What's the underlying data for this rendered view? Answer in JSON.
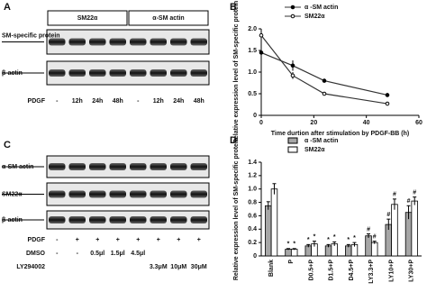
{
  "blots": [
    {
      "panel": "A",
      "headers": [
        "SM22α",
        "α-SM actin"
      ],
      "rows": [
        "SM-specific protein",
        "β-actin"
      ],
      "conditions": [
        {
          "label": "PDGF",
          "lanes": [
            "-",
            "12h",
            "24h",
            "48h",
            "-",
            "12h",
            "24h",
            "48h"
          ]
        }
      ]
    },
    {
      "panel": "C",
      "rows": [
        "α-SM actin",
        "SM22α",
        "β-actin"
      ],
      "conditions": [
        {
          "label": "PDGF",
          "lanes": [
            "-",
            "+",
            "+",
            "+",
            "+",
            "+",
            "+",
            "+"
          ]
        },
        {
          "label": "DMSO",
          "lanes": [
            "-",
            "-",
            "0.5μl",
            "1.5μl",
            "4.5μl",
            null,
            null,
            null
          ]
        },
        {
          "label": "LY294002",
          "lanes": [
            null,
            null,
            null,
            null,
            null,
            "3.3μM",
            "10μM",
            "30μM"
          ]
        }
      ]
    }
  ],
  "chart_data": [
    {
      "type": "line",
      "panel": "B",
      "y_label": "Relative expression level of SM-specific protein",
      "x_label": "Time durtion after stimulation by PDGF-BB (h)",
      "x": [
        0,
        12,
        24,
        48
      ],
      "series": [
        {
          "name": "α -SM actin",
          "color": "#333333",
          "values": [
            1.45,
            1.15,
            0.8,
            0.47
          ],
          "errors": [
            0.05,
            0.12,
            0.04,
            0.03
          ]
        },
        {
          "name": "SM22α",
          "color": "#333333",
          "values": [
            1.85,
            0.92,
            0.5,
            0.27
          ],
          "errors": [
            0.05,
            0.08,
            0.02,
            0.03
          ]
        }
      ],
      "xlim": [
        0,
        60
      ],
      "xticks": [
        0,
        20,
        40,
        60
      ],
      "ylim": [
        0,
        2
      ],
      "yticks": [
        0,
        0.5,
        {
          "value": 1,
          "label": "1.0"
        },
        1.5,
        {
          "value": 2,
          "label": "2.0"
        }
      ]
    },
    {
      "type": "bar",
      "panel": "D",
      "y_label": "Relative expression level of SM-specific protein",
      "categories": [
        "Blank",
        "P",
        "D0.5+P",
        "D1.5+P",
        "D4.5+P",
        "LY3.3+P",
        "LY10+P",
        "LY30+P"
      ],
      "series": [
        {
          "name": "α -SM actin",
          "color": "#a6a6a6",
          "values": [
            0.75,
            0.1,
            0.15,
            0.15,
            0.15,
            0.3,
            0.47,
            0.65
          ],
          "errors": [
            0.06,
            0.01,
            0.02,
            0.02,
            0.02,
            0.03,
            0.08,
            0.1
          ],
          "marks": [
            null,
            "*",
            "*",
            "*",
            "*",
            "#",
            "#",
            "#"
          ]
        },
        {
          "name": "SM22α",
          "color": "#ffffff",
          "values": [
            1.0,
            0.1,
            0.18,
            0.18,
            0.17,
            0.2,
            0.77,
            0.82
          ],
          "errors": [
            0.08,
            0.01,
            0.04,
            0.03,
            0.03,
            0.02,
            0.08,
            0.06
          ],
          "marks": [
            null,
            "*",
            "*",
            "*",
            "*",
            "#",
            "#",
            "#"
          ]
        }
      ],
      "ylim": [
        0,
        1.4
      ],
      "yticks": [
        0,
        0.2,
        0.4,
        0.6,
        0.8,
        {
          "value": 1,
          "label": "1.0"
        },
        1.2,
        1.4
      ]
    }
  ]
}
